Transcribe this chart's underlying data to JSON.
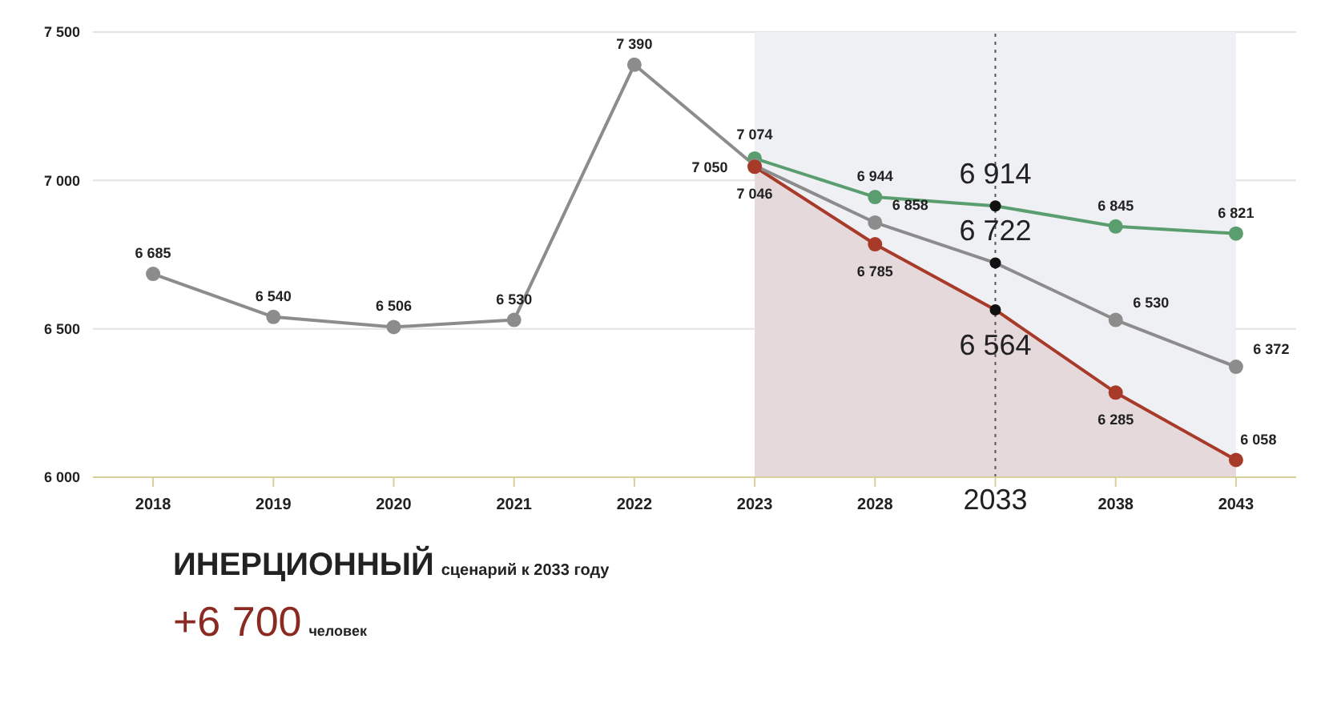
{
  "chart_data": {
    "type": "line",
    "categories": [
      "2018",
      "2019",
      "2020",
      "2021",
      "2022",
      "2023",
      "2028",
      "2033",
      "2038",
      "2043"
    ],
    "series": [
      {
        "color": "#5a9e6f",
        "values": [
          null,
          null,
          null,
          null,
          null,
          7074,
          6944,
          6914,
          6845,
          6821
        ]
      },
      {
        "color": "#8c8c8c",
        "values": [
          6685,
          6540,
          6506,
          6530,
          7390,
          7050,
          6858,
          6722,
          6530,
          6372
        ]
      },
      {
        "type": "area",
        "color": "#a83a2a",
        "values": [
          null,
          null,
          null,
          null,
          null,
          7046,
          6785,
          6564,
          6285,
          6058
        ]
      }
    ],
    "ylim": [
      6000,
      7500
    ],
    "yticks": [
      {
        "value": 6000,
        "label": "6 000"
      },
      {
        "value": 6500,
        "label": "6 500"
      },
      {
        "value": 7000,
        "label": "7 000"
      },
      {
        "value": 7500,
        "label": "7 500"
      }
    ],
    "grid": "y",
    "legend": false,
    "marker": "circle",
    "data_labels": true,
    "bands": [
      {
        "axis": "x",
        "from": "2023",
        "to": "2043",
        "color": "#eef0f4"
      }
    ],
    "ref_lines": [
      {
        "axis": "x",
        "value": "2033",
        "line_style": "dotted",
        "color": "#555555"
      }
    ],
    "annotations": [
      "ИНЕРЦИОННЫЙ сценарий к 2033 году",
      "+6 700 человек"
    ]
  }
}
